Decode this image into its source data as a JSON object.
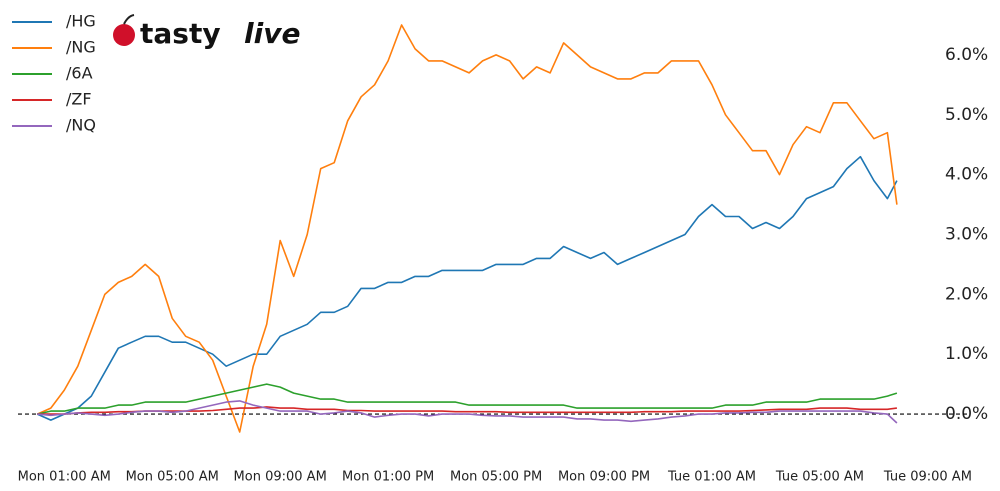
{
  "logo": {
    "part1": "tasty",
    "part2": "live"
  },
  "chart_data": {
    "type": "line",
    "x": [
      0,
      0.5,
      1,
      1.5,
      2,
      2.5,
      3,
      3.5,
      4,
      4.5,
      5,
      5.5,
      6,
      6.5,
      7,
      7.5,
      8,
      8.5,
      9,
      9.5,
      10,
      10.5,
      11,
      11.5,
      12,
      12.5,
      13,
      13.5,
      14,
      14.5,
      15,
      15.5,
      16,
      16.5,
      17,
      17.5,
      18,
      18.5,
      19,
      19.5,
      20,
      20.5,
      21,
      21.5,
      22,
      22.5,
      23,
      23.5,
      24,
      24.5,
      25,
      25.5,
      26,
      26.5,
      27,
      27.5,
      28,
      28.5,
      29,
      29.5,
      30,
      30.5,
      31,
      31.5,
      31.85
    ],
    "xlim": [
      -0.9,
      33.3
    ],
    "xticks": [
      {
        "value": 1,
        "label": "Mon 01:00 AM"
      },
      {
        "value": 5,
        "label": "Mon 05:00 AM"
      },
      {
        "value": 9,
        "label": "Mon 09:00 AM"
      },
      {
        "value": 13,
        "label": "Mon 01:00 PM"
      },
      {
        "value": 17,
        "label": "Mon 05:00 PM"
      },
      {
        "value": 21,
        "label": "Mon 09:00 PM"
      },
      {
        "value": 25,
        "label": "Tue 01:00 AM"
      },
      {
        "value": 29,
        "label": "Tue 05:00 AM"
      },
      {
        "value": 33,
        "label": "Tue 09:00 AM"
      }
    ],
    "ylim": [
      -0.5,
      6.6
    ],
    "yticks": [
      {
        "value": 0,
        "label": "0.0%"
      },
      {
        "value": 1,
        "label": "1.0%"
      },
      {
        "value": 2,
        "label": "2.0%"
      },
      {
        "value": 3,
        "label": "3.0%"
      },
      {
        "value": 4,
        "label": "4.0%"
      },
      {
        "value": 5,
        "label": "5.0%"
      },
      {
        "value": 6,
        "label": "6.0%"
      }
    ],
    "baseline": 0,
    "series": [
      {
        "name": "/HG",
        "color": "#1f77b4",
        "values": [
          0,
          -0.1,
          0,
          0.1,
          0.3,
          0.7,
          1.1,
          1.2,
          1.3,
          1.3,
          1.2,
          1.2,
          1.1,
          1.0,
          0.8,
          0.9,
          1.0,
          1.0,
          1.3,
          1.4,
          1.5,
          1.7,
          1.7,
          1.8,
          2.1,
          2.1,
          2.2,
          2.2,
          2.3,
          2.3,
          2.4,
          2.4,
          2.4,
          2.4,
          2.5,
          2.5,
          2.5,
          2.6,
          2.6,
          2.8,
          2.7,
          2.6,
          2.7,
          2.5,
          2.6,
          2.7,
          2.8,
          2.9,
          3.0,
          3.3,
          3.5,
          3.3,
          3.3,
          3.1,
          3.2,
          3.1,
          3.3,
          3.6,
          3.7,
          3.8,
          4.1,
          4.3,
          3.9,
          3.6,
          3.9
        ]
      },
      {
        "name": "/NG",
        "color": "#ff7f0e",
        "values": [
          0,
          0.1,
          0.4,
          0.8,
          1.4,
          2.0,
          2.2,
          2.3,
          2.5,
          2.3,
          1.6,
          1.3,
          1.2,
          0.9,
          0.3,
          -0.3,
          0.8,
          1.5,
          2.9,
          2.3,
          3.0,
          4.1,
          4.2,
          4.9,
          5.3,
          5.5,
          5.9,
          6.5,
          6.1,
          5.9,
          5.9,
          5.8,
          5.7,
          5.9,
          6.0,
          5.9,
          5.6,
          5.8,
          5.7,
          6.2,
          6.0,
          5.8,
          5.7,
          5.6,
          5.6,
          5.7,
          5.7,
          5.9,
          5.9,
          5.9,
          5.5,
          5.0,
          4.7,
          4.4,
          4.4,
          4.0,
          4.5,
          4.8,
          4.7,
          5.2,
          5.2,
          4.9,
          4.6,
          4.7,
          3.5
        ]
      },
      {
        "name": "/6A",
        "color": "#2ca02c",
        "values": [
          0,
          0.05,
          0.05,
          0.1,
          0.1,
          0.1,
          0.15,
          0.15,
          0.2,
          0.2,
          0.2,
          0.2,
          0.25,
          0.3,
          0.35,
          0.4,
          0.45,
          0.5,
          0.45,
          0.35,
          0.3,
          0.25,
          0.25,
          0.2,
          0.2,
          0.2,
          0.2,
          0.2,
          0.2,
          0.2,
          0.2,
          0.2,
          0.15,
          0.15,
          0.15,
          0.15,
          0.15,
          0.15,
          0.15,
          0.15,
          0.1,
          0.1,
          0.1,
          0.1,
          0.1,
          0.1,
          0.1,
          0.1,
          0.1,
          0.1,
          0.1,
          0.15,
          0.15,
          0.15,
          0.2,
          0.2,
          0.2,
          0.2,
          0.25,
          0.25,
          0.25,
          0.25,
          0.25,
          0.3,
          0.35
        ]
      },
      {
        "name": "/ZF",
        "color": "#d62728",
        "values": [
          0,
          0,
          0,
          0.02,
          0.03,
          0.03,
          0.04,
          0.04,
          0.05,
          0.05,
          0.05,
          0.05,
          0.05,
          0.06,
          0.08,
          0.1,
          0.1,
          0.12,
          0.1,
          0.1,
          0.08,
          0.08,
          0.08,
          0.06,
          0.06,
          0.05,
          0.05,
          0.05,
          0.05,
          0.05,
          0.05,
          0.04,
          0.04,
          0.04,
          0.04,
          0.03,
          0.03,
          0.03,
          0.03,
          0.03,
          0.03,
          0.03,
          0.03,
          0.03,
          0.03,
          0.04,
          0.04,
          0.04,
          0.05,
          0.05,
          0.05,
          0.05,
          0.05,
          0.06,
          0.07,
          0.08,
          0.08,
          0.08,
          0.1,
          0.1,
          0.1,
          0.08,
          0.08,
          0.08,
          0.1
        ]
      },
      {
        "name": "/NQ",
        "color": "#9467bd",
        "values": [
          0,
          -0.02,
          0,
          0.02,
          0,
          -0.02,
          0,
          0.03,
          0.05,
          0.05,
          0.03,
          0.05,
          0.1,
          0.15,
          0.2,
          0.22,
          0.15,
          0.1,
          0.05,
          0.05,
          0.05,
          0.0,
          0.02,
          0.05,
          0.02,
          -0.05,
          -0.02,
          0.0,
          0.0,
          -0.03,
          0.0,
          0.0,
          0.0,
          -0.02,
          -0.03,
          -0.03,
          -0.05,
          -0.05,
          -0.05,
          -0.05,
          -0.08,
          -0.08,
          -0.1,
          -0.1,
          -0.12,
          -0.1,
          -0.08,
          -0.05,
          -0.03,
          0.0,
          0.0,
          0.02,
          0.02,
          0.03,
          0.03,
          0.05,
          0.05,
          0.05,
          0.05,
          0.05,
          0.05,
          0.05,
          0.02,
          0.0,
          -0.15
        ]
      }
    ]
  }
}
